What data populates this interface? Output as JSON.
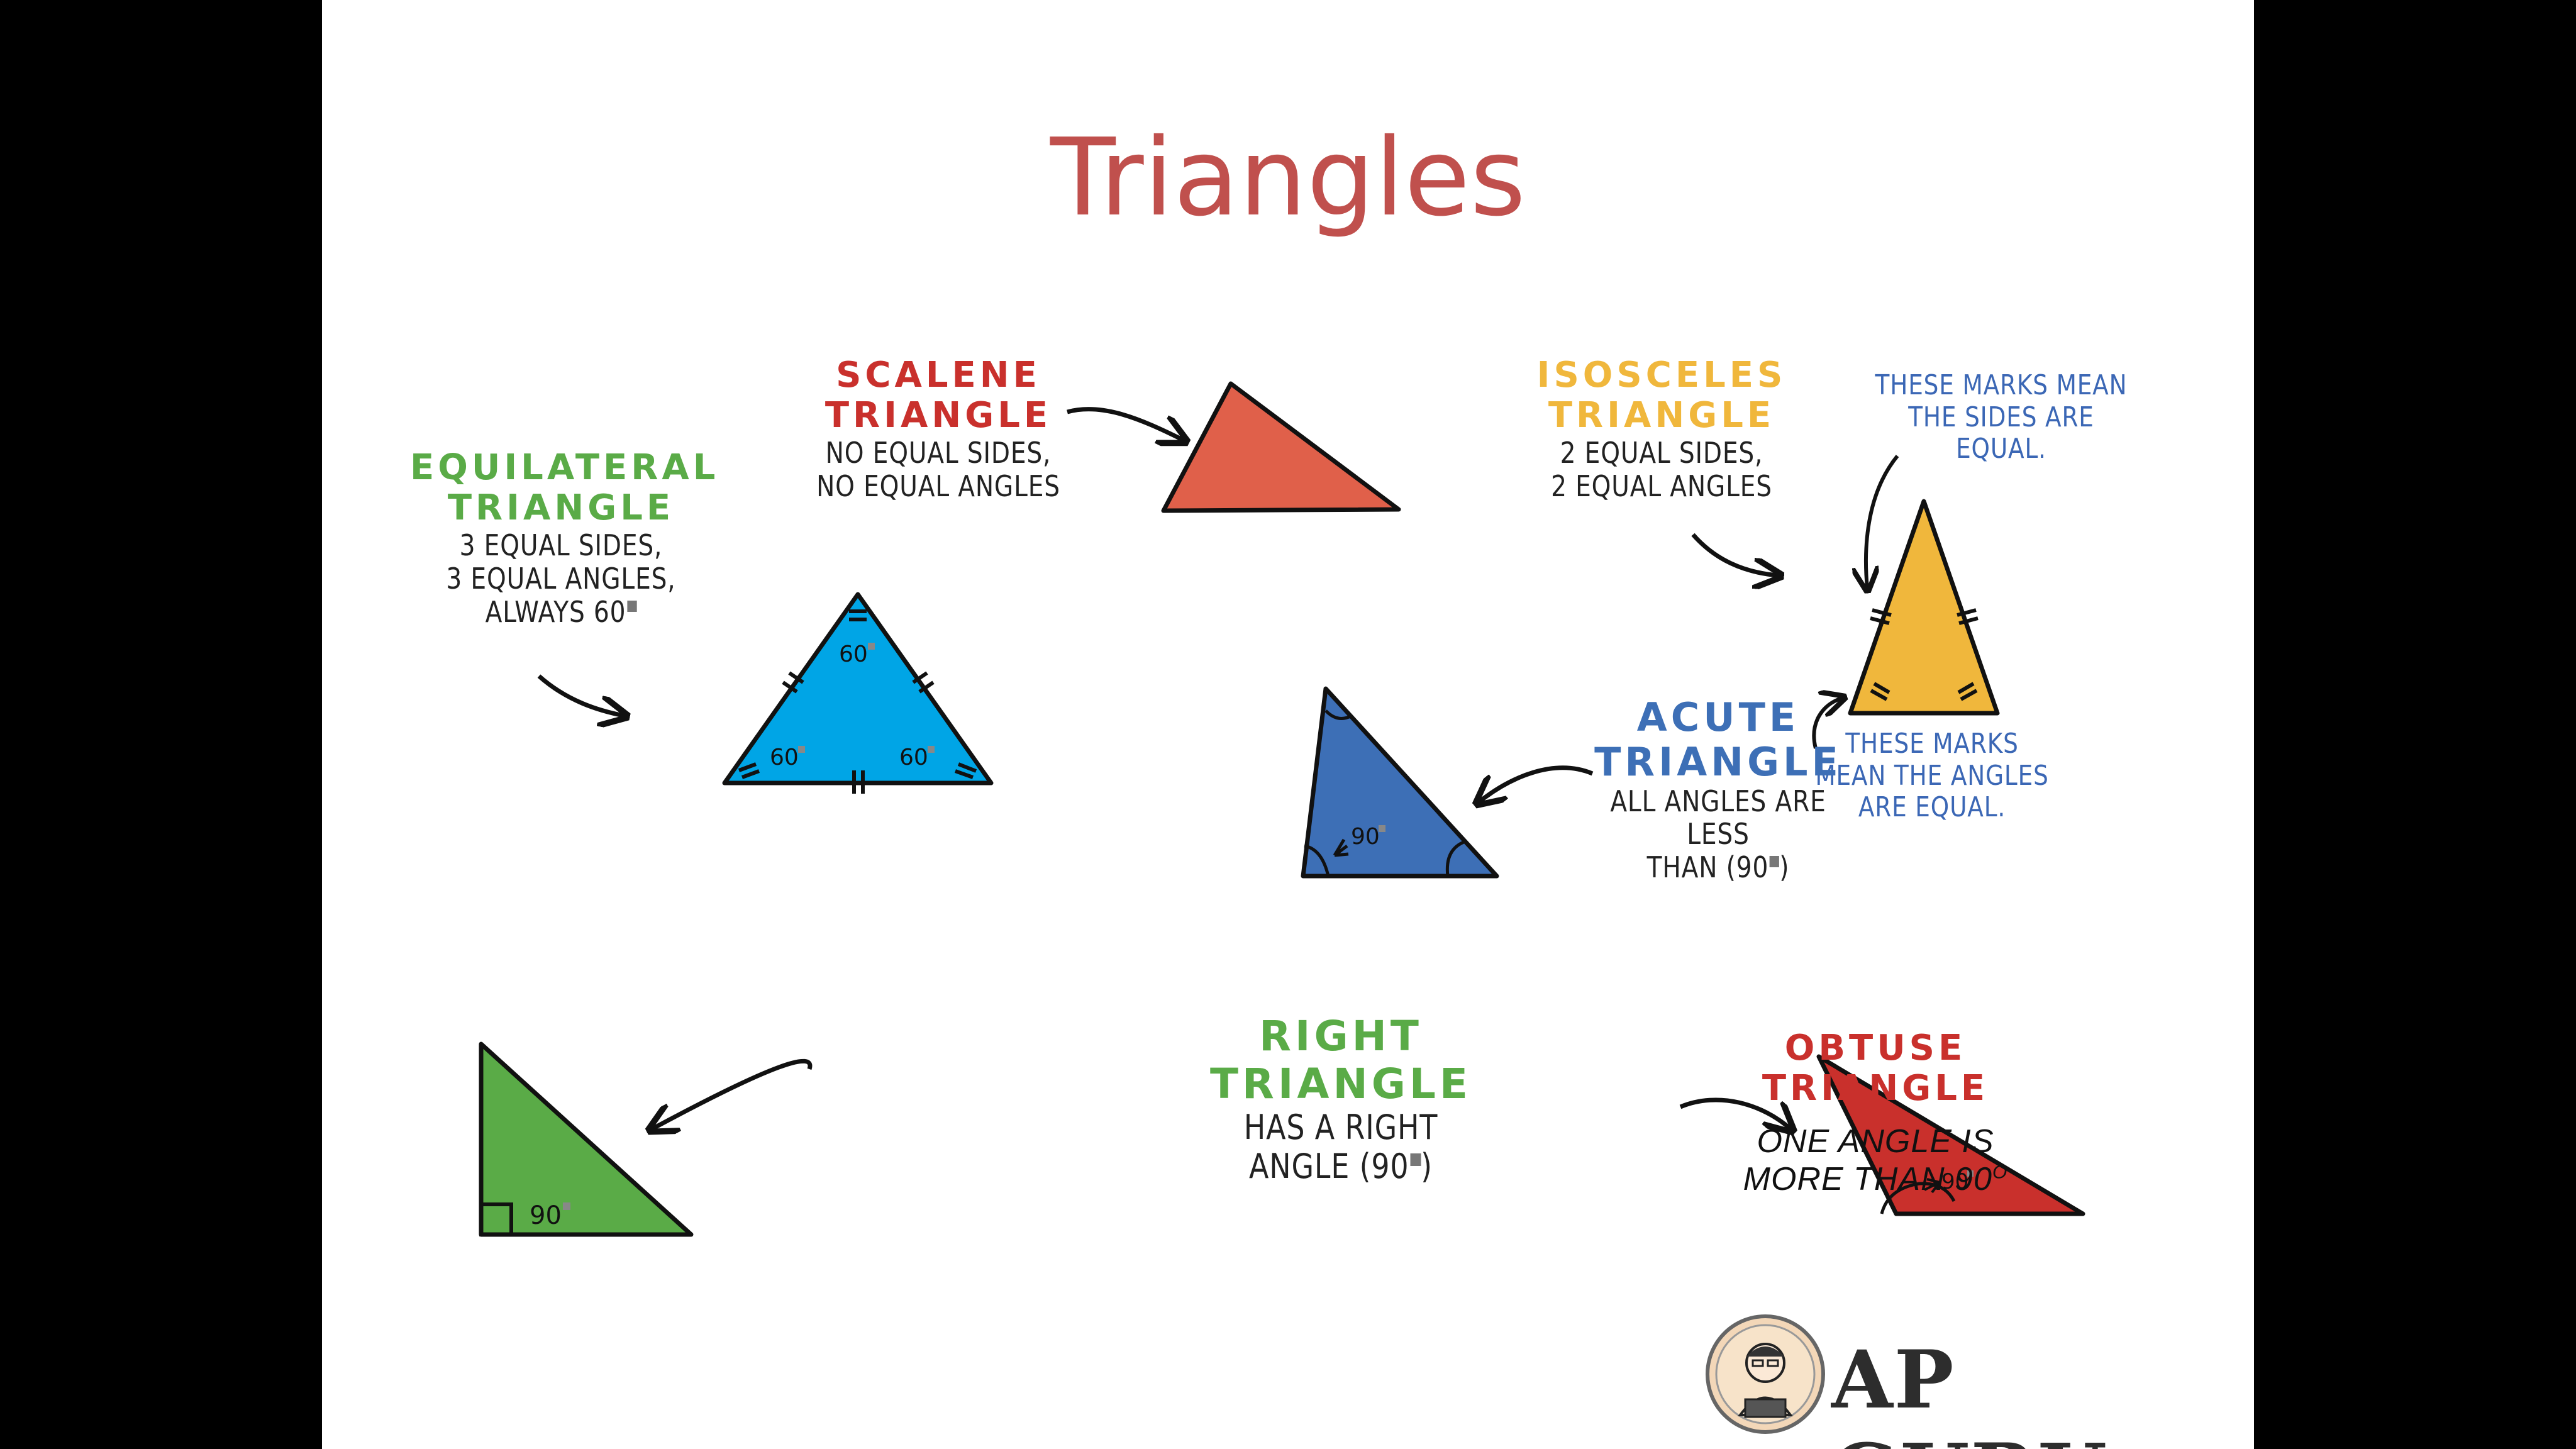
{
  "title": "Triangles",
  "equilateral": {
    "heading_1": "EQUILATERAL",
    "heading_2": "TRIANGLE",
    "line_1": "3 EQUAL SIDES,",
    "line_2": "3 EQUAL ANGLES,",
    "line_3": "ALWAYS 60",
    "angle_label": "60",
    "color": "#00a5e6"
  },
  "scalene": {
    "heading_1": "SCALENE",
    "heading_2": "TRIANGLE",
    "line_1": "NO EQUAL SIDES,",
    "line_2": "NO EQUAL ANGLES",
    "color": "#e0604a"
  },
  "isosceles": {
    "heading_1": "ISOSCELES",
    "heading_2": "TRIANGLE",
    "line_1": "2 EQUAL SIDES,",
    "line_2": "2 EQUAL ANGLES",
    "color": "#f0b73c"
  },
  "side_marks_note": {
    "line_1": "THESE MARKS MEAN",
    "line_2": "THE SIDES ARE",
    "line_3": "EQUAL."
  },
  "angle_marks_note": {
    "line_1": "THESE MARKS",
    "line_2": "MEAN THE ANGLES",
    "line_3": "ARE EQUAL."
  },
  "acute": {
    "heading_1": "ACUTE",
    "heading_2": "TRIANGLE",
    "line_1": "ALL ANGLES ARE LESS",
    "line_2": "THAN (90",
    "line_2_end": ")",
    "angle_label": "90",
    "color": "#3d6fb6"
  },
  "right": {
    "heading_1": "RIGHT",
    "heading_2": "TRIANGLE",
    "line_1": "HAS A RIGHT",
    "line_2": "ANGLE (90",
    "line_2_end": ")",
    "angle_label": "90",
    "color": "#5aab47"
  },
  "obtuse": {
    "heading_1": "OBTUSE",
    "heading_2": "TRIANGLE",
    "line_1": "ONE ANGLE IS",
    "line_2": "MORE THAN 90",
    "line_2_sup": "O",
    "angle_label": "90",
    "color": "#c9302c"
  },
  "logo": {
    "text": "AP GURU"
  }
}
